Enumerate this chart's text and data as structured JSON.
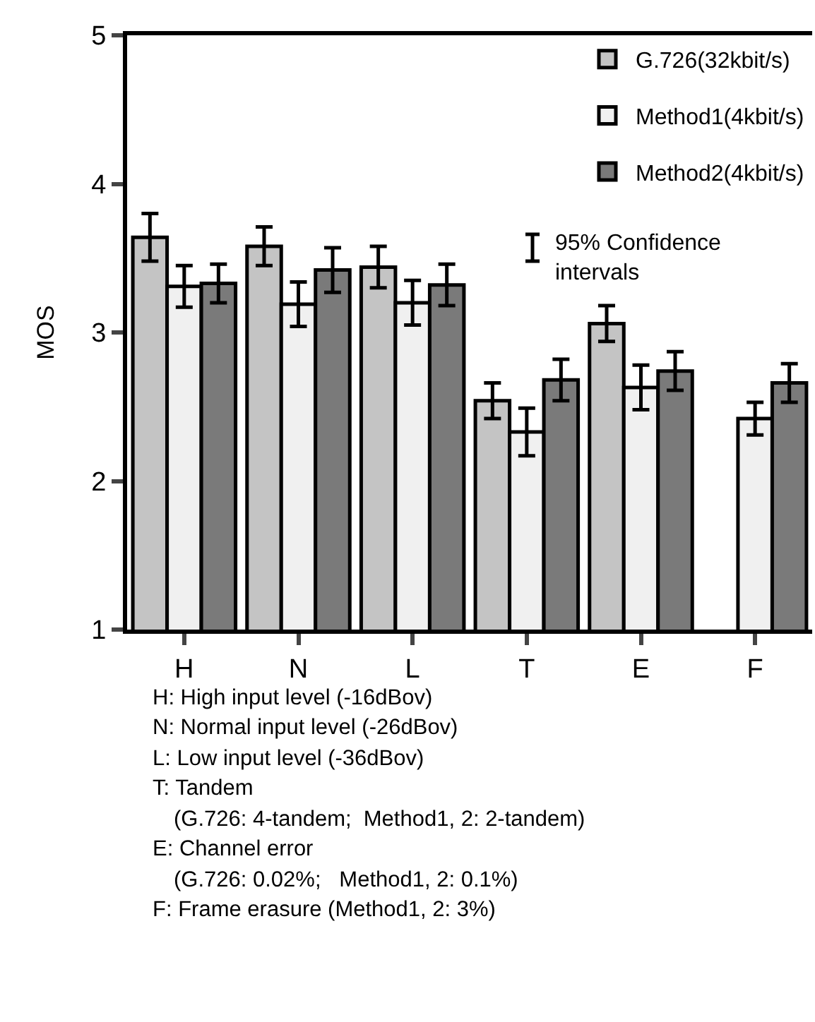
{
  "chart_data": {
    "type": "bar",
    "ylabel": "MOS",
    "categories": [
      "H",
      "N",
      "L",
      "T",
      "E",
      "F"
    ],
    "series": [
      {
        "name": "G.726(32kbit/s)",
        "color": "#c4c4c4",
        "values": [
          3.64,
          3.58,
          3.44,
          2.54,
          3.06,
          null
        ],
        "errors": [
          0.16,
          0.13,
          0.14,
          0.12,
          0.12,
          null
        ]
      },
      {
        "name": "Method1(4kbit/s)",
        "color": "#f0f0f0",
        "values": [
          3.31,
          3.19,
          3.2,
          2.33,
          2.63,
          2.42
        ],
        "errors": [
          0.14,
          0.15,
          0.15,
          0.16,
          0.15,
          0.11
        ]
      },
      {
        "name": "Method2(4kbit/s)",
        "color": "#7a7a7a",
        "values": [
          3.33,
          3.42,
          3.32,
          2.68,
          2.74,
          2.66
        ],
        "errors": [
          0.13,
          0.15,
          0.14,
          0.14,
          0.13,
          0.13
        ]
      }
    ],
    "ylim": [
      1,
      5
    ],
    "yticks": [
      1,
      2,
      3,
      4,
      5
    ],
    "legend": "top right",
    "annotations": [
      "95% Confidence\nintervals",
      "H: High input level (-16dBov)",
      "N: Normal input level (-26dBov)",
      "L: Low input level (-36dBov)",
      "T: Tandem\n(G.726: 4-tandem;  Method1, 2: 2-tandem)",
      "E: Channel error\n(G.726: 0.02%;   Method1, 2: 0.1%)",
      "F: Frame erasure (Method1, 2: 3%)"
    ]
  }
}
